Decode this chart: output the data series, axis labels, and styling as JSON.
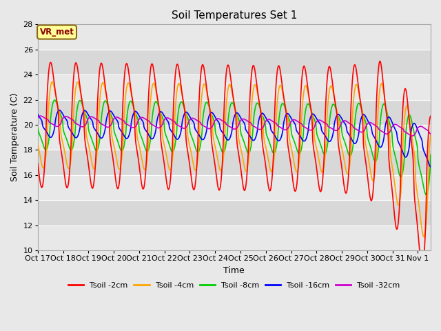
{
  "title": "Soil Temperatures Set 1",
  "xlabel": "Time",
  "ylabel": "Soil Temperature (C)",
  "ylim": [
    10,
    28
  ],
  "yticks": [
    10,
    12,
    14,
    16,
    18,
    20,
    22,
    24,
    26,
    28
  ],
  "bg_color": "#e8e8e8",
  "annotation_box": "VR_met",
  "annotation_color": "#8B0000",
  "annotation_bg": "#FFFF99",
  "annotation_border": "#8B6914",
  "legend_labels": [
    "Tsoil -2cm",
    "Tsoil -4cm",
    "Tsoil -8cm",
    "Tsoil -16cm",
    "Tsoil -32cm"
  ],
  "line_colors": [
    "#FF0000",
    "#FFA500",
    "#00CC00",
    "#0000FF",
    "#CC00CC"
  ],
  "xtick_labels": [
    "Oct 17",
    "Oct 18",
    "Oct 19",
    "Oct 20",
    "Oct 21",
    "Oct 22",
    "Oct 23",
    "Oct 24",
    "Oct 25",
    "Oct 26",
    "Oct 27",
    "Oct 28",
    "Oct 29",
    "Oct 30",
    "Oct 31",
    "Nov 1"
  ],
  "band_colors": [
    "#e8e8e8",
    "#d8d8d8"
  ],
  "grid_color": "#ffffff",
  "spine_color": "#aaaaaa"
}
